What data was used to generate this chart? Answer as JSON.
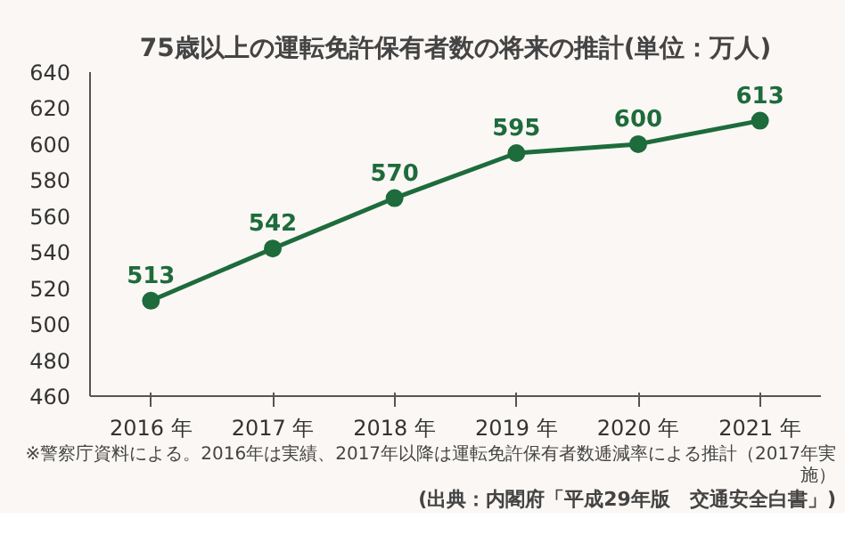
{
  "chart_data": {
    "type": "line",
    "title": "75歳以上の運転免許保有者数の将来の推計(単位：万人)",
    "categories": [
      "2016 年",
      "2017 年",
      "2018 年",
      "2019 年",
      "2020 年",
      "2021 年"
    ],
    "series": [
      {
        "color": "#1e6b3c",
        "values": [
          513,
          542,
          570,
          595,
          600,
          613
        ]
      }
    ],
    "ylim": [
      460,
      640
    ],
    "yticks": [
      460,
      480,
      500,
      520,
      540,
      560,
      580,
      600,
      620,
      640
    ],
    "data_labels": true,
    "marker": "circle",
    "grid": false,
    "annotations": [
      "※警察庁資料による。2016年は実績、2017年以降は運転免許保有者数逓減率による推計（2017年実施）",
      "(出典：内閣府「平成29年版　交通安全白書」)"
    ]
  }
}
